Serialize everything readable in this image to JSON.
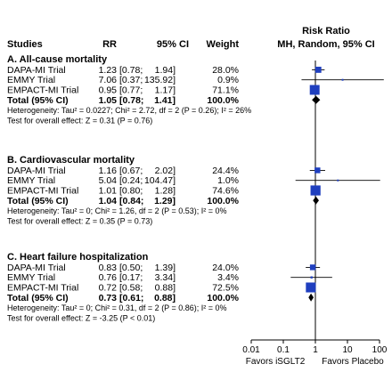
{
  "chart_data": {
    "type": "forest",
    "header": {
      "studies": "Studies",
      "rr": "RR",
      "ci": "95% CI",
      "weight": "Weight",
      "risk_ratio_line1": "Risk Ratio",
      "risk_ratio_line2": "MH, Random, 95% CI"
    },
    "x_scale": "log",
    "xlim": [
      0.01,
      100
    ],
    "x_ticks": [
      "0.01",
      "0.1",
      "1",
      "10",
      "100"
    ],
    "x_tick_values": [
      0.01,
      0.1,
      1,
      10,
      100
    ],
    "favors_left": "Favors iSGLT2",
    "favors_right": "Favors Placebo",
    "colors": {
      "study_marker": "#1f3fbf",
      "summary": "#000000",
      "line": "#000000"
    },
    "groups": [
      {
        "title": "A. All-cause mortality",
        "studies": [
          {
            "name": "DAPA-MI Trial",
            "rr": "1.23",
            "ci": "[0.78;  1.94]",
            "weight": "28.0%",
            "est": 1.23,
            "lo": 0.78,
            "hi": 1.94,
            "w": 28.0
          },
          {
            "name": "EMMY Trial",
            "rr": "7.06",
            "ci": "[0.37; 135.92]",
            "weight": "0.9%",
            "est": 7.06,
            "lo": 0.37,
            "hi": 135.92,
            "w": 0.9
          },
          {
            "name": "EMPACT-MI Trial",
            "rr": "0.95",
            "ci": "[0.77;  1.17]",
            "weight": "71.1%",
            "est": 0.95,
            "lo": 0.77,
            "hi": 1.17,
            "w": 71.1
          }
        ],
        "total": {
          "name": "Total (95% CI)",
          "rr": "1.05",
          "ci": "[0.78;  1.41]",
          "weight": "100.0%",
          "est": 1.05,
          "lo": 0.78,
          "hi": 1.41
        },
        "heterogeneity": "Heterogeneity: Tau² = 0.0227; Chi² = 2.72, df = 2 (P = 0.26); I² = 26%",
        "overall": "Test for overall effect: Z = 0.31 (P = 0.76)"
      },
      {
        "title": "B. Cardiovascular mortality",
        "studies": [
          {
            "name": "DAPA-MI Trial",
            "rr": "1.16",
            "ci": "[0.67;  2.02]",
            "weight": "24.4%",
            "est": 1.16,
            "lo": 0.67,
            "hi": 2.02,
            "w": 24.4
          },
          {
            "name": "EMMY Trial",
            "rr": "5.04",
            "ci": "[0.24; 104.47]",
            "weight": "1.0%",
            "est": 5.04,
            "lo": 0.24,
            "hi": 104.47,
            "w": 1.0
          },
          {
            "name": "EMPACT-MI Trial",
            "rr": "1.01",
            "ci": "[0.80;  1.28]",
            "weight": "74.6%",
            "est": 1.01,
            "lo": 0.8,
            "hi": 1.28,
            "w": 74.6
          }
        ],
        "total": {
          "name": "Total (95% CI)",
          "rr": "1.04",
          "ci": "[0.84;  1.29]",
          "weight": "100.0%",
          "est": 1.04,
          "lo": 0.84,
          "hi": 1.29
        },
        "heterogeneity": "Heterogeneity: Tau² = 0; Chi² = 1.26, df = 2 (P = 0.53); I² = 0%",
        "overall": "Test for overall effect: Z = 0.35 (P = 0.73)"
      },
      {
        "title": "C. Heart failure hospitalization",
        "studies": [
          {
            "name": "DAPA-MI Trial",
            "rr": "0.83",
            "ci": "[0.50;  1.39]",
            "weight": "24.0%",
            "est": 0.83,
            "lo": 0.5,
            "hi": 1.39,
            "w": 24.0
          },
          {
            "name": "EMMY Trial",
            "rr": "0.76",
            "ci": "[0.17;  3.34]",
            "weight": "3.4%",
            "est": 0.76,
            "lo": 0.17,
            "hi": 3.34,
            "w": 3.4
          },
          {
            "name": "EMPACT-MI Trial",
            "rr": "0.72",
            "ci": "[0.58;  0.88]",
            "weight": "72.5%",
            "est": 0.72,
            "lo": 0.58,
            "hi": 0.88,
            "w": 72.5
          }
        ],
        "total": {
          "name": "Total (95% CI)",
          "rr": "0.73",
          "ci": "[0.61;  0.88]",
          "weight": "100.0%",
          "est": 0.73,
          "lo": 0.61,
          "hi": 0.88
        },
        "heterogeneity": "Heterogeneity: Tau² = 0; Chi² = 0.31, df = 2 (P = 0.86); I² = 0%",
        "overall": "Test for overall effect: Z = -3.25 (P < 0.01)"
      }
    ]
  }
}
